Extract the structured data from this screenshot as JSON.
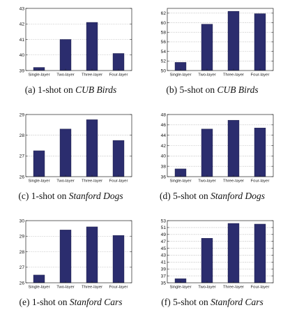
{
  "chart_data": [
    {
      "type": "bar",
      "categories": [
        "Single-layer",
        "Two-layer",
        "Three-layer",
        "Four-layer"
      ],
      "values": [
        39.2,
        41.0,
        42.1,
        40.1
      ],
      "ylim": [
        39,
        43
      ],
      "yticks": [
        "39",
        "40",
        "41",
        "42",
        "43"
      ],
      "grid": true,
      "caption": {
        "prefix": "(a) 1-shot on ",
        "dataset": "CUB Birds"
      }
    },
    {
      "type": "bar",
      "categories": [
        "Single-layer",
        "Two-layer",
        "Three-layer",
        "Four-layer"
      ],
      "values": [
        51.7,
        59.7,
        62.4,
        61.9
      ],
      "ylim": [
        50,
        63
      ],
      "yticks": [
        "50",
        "52",
        "54",
        "56",
        "58",
        "60",
        "62"
      ],
      "grid": true,
      "caption": {
        "prefix": "(b) 5-shot on ",
        "dataset": "CUB Birds"
      }
    },
    {
      "type": "bar",
      "categories": [
        "Single-layer",
        "Two-layer",
        "Three-layer",
        "Four-layer"
      ],
      "values": [
        27.25,
        28.3,
        28.75,
        27.75
      ],
      "ylim": [
        26,
        29
      ],
      "yticks": [
        "26",
        "27",
        "28",
        "29"
      ],
      "grid": true,
      "caption": {
        "prefix": "(c) 1-shot on ",
        "dataset": "Stanford Dogs"
      }
    },
    {
      "type": "bar",
      "categories": [
        "Single-layer",
        "Two-layer",
        "Three-layer",
        "Four-layer"
      ],
      "values": [
        37.5,
        45.2,
        46.9,
        45.4
      ],
      "ylim": [
        36,
        48
      ],
      "yticks": [
        "36",
        "38",
        "40",
        "42",
        "44",
        "46",
        "48"
      ],
      "grid": true,
      "caption": {
        "prefix": "(d) 5-shot on ",
        "dataset": "Stanford Dogs"
      }
    },
    {
      "type": "bar",
      "categories": [
        "Single-layer",
        "Two-layer",
        "Three-layer",
        "Four-layer"
      ],
      "values": [
        26.5,
        29.4,
        29.6,
        29.05
      ],
      "ylim": [
        26,
        30
      ],
      "yticks": [
        "26",
        "27",
        "28",
        "29",
        "30"
      ],
      "grid": true,
      "caption": {
        "prefix": "(e) 1-shot on ",
        "dataset": "Stanford Cars"
      }
    },
    {
      "type": "bar",
      "categories": [
        "Single-layer",
        "Two-layer",
        "Three-layer",
        "Four-layer"
      ],
      "values": [
        36.2,
        47.9,
        52.2,
        52.0
      ],
      "ylim": [
        35,
        53
      ],
      "yticks": [
        "35",
        "37",
        "39",
        "41",
        "43",
        "45",
        "47",
        "49",
        "51",
        "53"
      ],
      "grid": true,
      "caption": {
        "prefix": "(f) 5-shot on ",
        "dataset": "Stanford Cars"
      }
    }
  ],
  "colors": {
    "bar": "#2b2d6e",
    "axis": "#222222",
    "grid": "#9a9a9a"
  }
}
